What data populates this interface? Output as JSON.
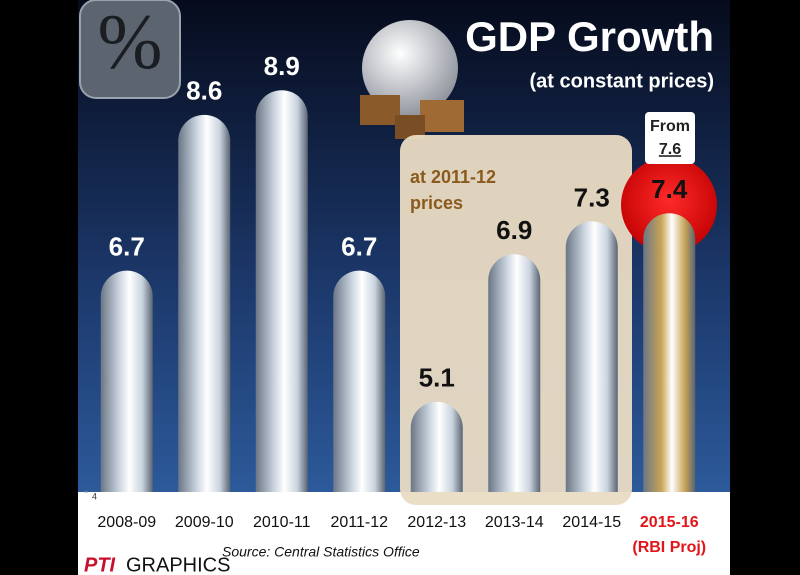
{
  "chart_data": {
    "type": "bar",
    "icon_text": "%",
    "title": "GDP Growth",
    "subtitle": "(at constant prices)",
    "categories": [
      "2008-09",
      "2009-10",
      "2010-11",
      "2011-12",
      "2012-13",
      "2013-14",
      "2014-15",
      "2015-16"
    ],
    "category_note": "(RBI Proj)",
    "values": [
      6.7,
      8.6,
      8.9,
      6.7,
      5.1,
      6.9,
      7.3,
      7.4
    ],
    "colors": [
      "#c9d3de",
      "#c9d3de",
      "#c9d3de",
      "#c9d3de",
      "#c9d3de",
      "#c9d3de",
      "#c9d3de",
      "#c8a457"
    ],
    "ylim": [
      4,
      10
    ],
    "yticks": [
      4
    ],
    "annotations": {
      "prices_note": "at 2011-12 prices",
      "from_label": "From",
      "previous_projection": 7.6
    },
    "source": "Source: Central Statistics Office",
    "brand": "PTI",
    "brand_suffix": "GRAPHICS"
  }
}
